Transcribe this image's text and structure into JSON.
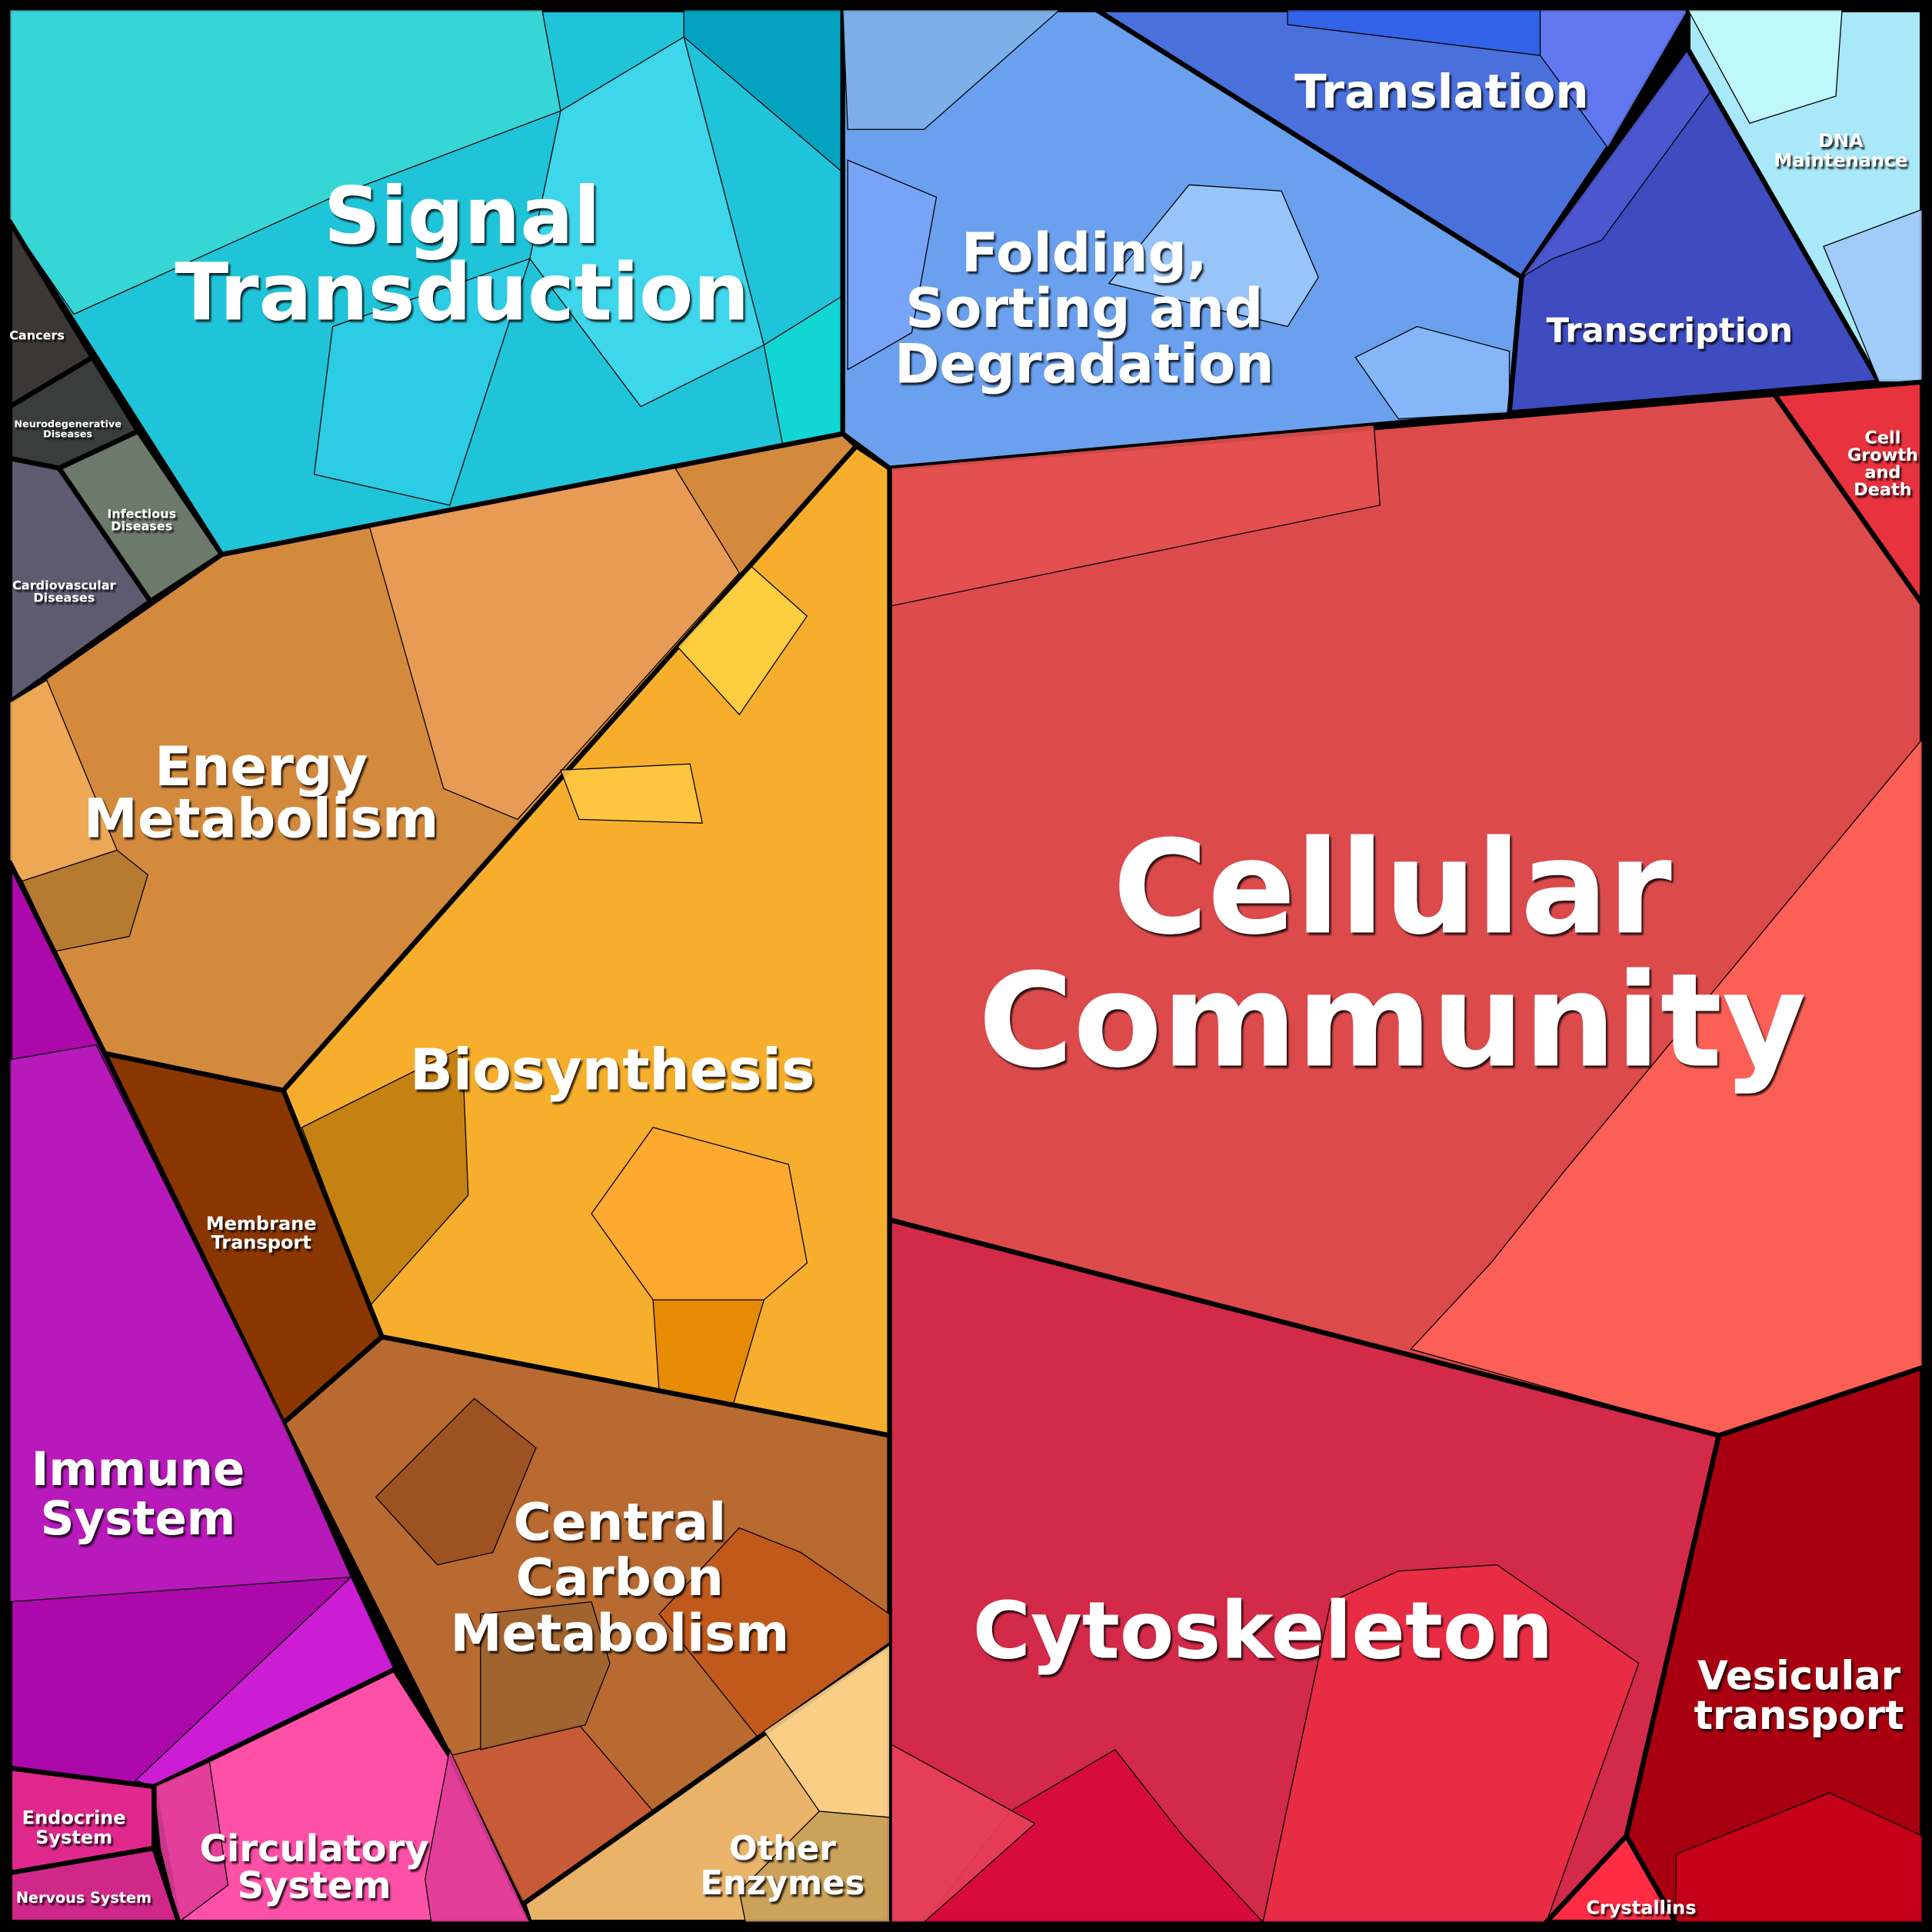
{
  "regions": [
    {
      "lines": [
        "Signal",
        "Transduction"
      ]
    },
    {
      "lines": [
        "Cancers"
      ]
    },
    {
      "lines": [
        "Neurodegenerative",
        "Diseases"
      ]
    },
    {
      "lines": [
        "Infectious",
        "Diseases"
      ]
    },
    {
      "lines": [
        "Cardiovascular",
        "Diseases"
      ]
    },
    {
      "lines": [
        "Folding,",
        "Sorting and",
        "Degradation"
      ]
    },
    {
      "lines": [
        "Translation"
      ]
    },
    {
      "lines": [
        "Transcription"
      ]
    },
    {
      "lines": [
        "DNA",
        "Maintenance"
      ]
    },
    {
      "lines": [
        "Cell",
        "Growth",
        "and",
        "Death"
      ]
    },
    {
      "lines": [
        "Cellular",
        "Community"
      ]
    },
    {
      "lines": [
        "Energy",
        "Metabolism"
      ]
    },
    {
      "lines": [
        "Biosynthesis"
      ]
    },
    {
      "lines": [
        "Membrane",
        "Transport"
      ]
    },
    {
      "lines": [
        "Immune",
        "System"
      ]
    },
    {
      "lines": [
        "Central",
        "Carbon",
        "Metabolism"
      ]
    },
    {
      "lines": [
        "Cytoskeleton"
      ]
    },
    {
      "lines": [
        "Vesicular",
        "transport"
      ]
    },
    {
      "lines": [
        "Endocrine",
        "System"
      ]
    },
    {
      "lines": [
        "Circulatory",
        "System"
      ]
    },
    {
      "lines": [
        "Other",
        "Enzymes"
      ]
    },
    {
      "lines": [
        "Nervous System"
      ]
    },
    {
      "lines": [
        "Crystallins"
      ]
    }
  ]
}
